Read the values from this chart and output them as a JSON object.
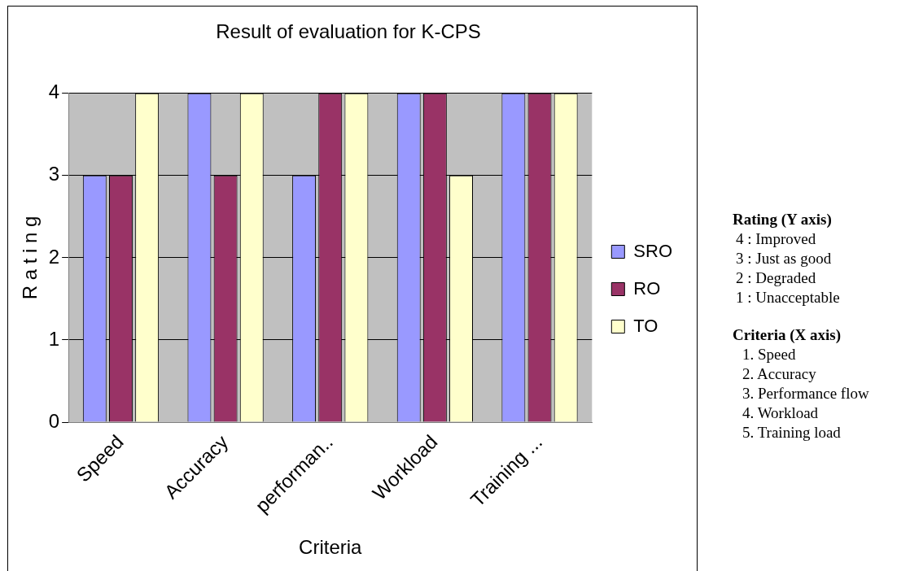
{
  "chart_data": {
    "type": "bar",
    "title": "Result of evaluation for K-CPS",
    "xlabel": "Criteria",
    "ylabel": "R a t i n g",
    "categories": [
      "Speed",
      "Accuracy",
      "performan..",
      "Workload",
      "Training ..."
    ],
    "series": [
      {
        "name": "SRO",
        "color": "#9999ff",
        "values": [
          3,
          4,
          3,
          4,
          4
        ]
      },
      {
        "name": "RO",
        "color": "#993366",
        "values": [
          3,
          3,
          4,
          4,
          4
        ]
      },
      {
        "name": "TO",
        "color": "#ffffcc",
        "values": [
          4,
          4,
          4,
          3,
          4
        ]
      }
    ],
    "ylim": [
      0,
      4
    ],
    "yticks": [
      0,
      1,
      2,
      3,
      4
    ],
    "grid": "y",
    "legend": "right",
    "annotations": [
      "Rating (Y axis)",
      "4 : Improved",
      "3 : Just as good",
      "2 : Degraded",
      "1 : Unacceptable",
      "Criteria (X axis)",
      "1. Speed",
      "2. Accuracy",
      "3. Performance flow",
      "4. Workload",
      "5. Training load"
    ]
  }
}
